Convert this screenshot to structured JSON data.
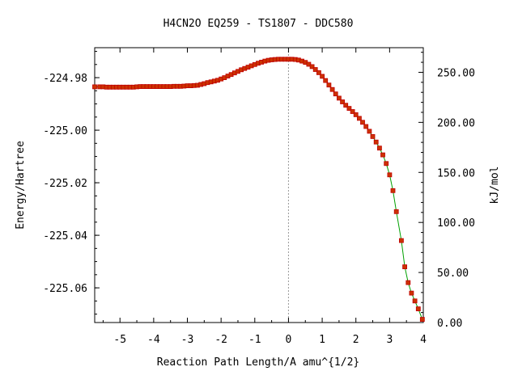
{
  "chart_data": {
    "type": "line",
    "title": "H4CN2O   EQ259 - TS1807 - DDC580",
    "xlabel": "Reaction Path Length/A amu^{1/2}",
    "ylabel": "Energy/Hartree",
    "y2label": "kJ/mol",
    "xlim": [
      -5.75,
      4.0
    ],
    "ylim": [
      -225.0732,
      -224.9686
    ],
    "y2lim": [
      0.0,
      274.6
    ],
    "x_ticks": [
      -5,
      -4,
      -3,
      -2,
      -1,
      0,
      1,
      2,
      3,
      4
    ],
    "x_tick_labels": [
      "-5",
      "-4",
      "-3",
      "-2",
      "-1",
      "0",
      "1",
      "2",
      "3",
      "4"
    ],
    "y_ticks": [
      -224.98,
      -225.0,
      -225.02,
      -225.04,
      -225.06
    ],
    "y_tick_labels": [
      "-224.98",
      "-225.00",
      "-225.02",
      "-225.04",
      "-225.06"
    ],
    "y2_ticks": [
      0,
      50,
      100,
      150,
      200,
      250
    ],
    "y2_tick_labels": [
      "0.00",
      "50.00",
      "100.00",
      "150.00",
      "200.00",
      "250.00"
    ],
    "ts_x": 0.0,
    "grid": false,
    "colors": {
      "line": "#00a000",
      "marker": "#c00000",
      "marker_fill": "#cc3300",
      "ts_line": "#999999"
    },
    "series": [
      {
        "x": [
          -5.75,
          -5.6,
          -5.5,
          -5.4,
          -5.3,
          -5.2,
          -5.1,
          -5.0,
          -4.9,
          -4.8,
          -4.7,
          -4.6,
          -4.5,
          -4.4,
          -4.3,
          -4.2,
          -4.1,
          -4.0,
          -3.9,
          -3.8,
          -3.7,
          -3.6,
          -3.5,
          -3.4,
          -3.3,
          -3.2,
          -3.1,
          -3.0,
          -2.9,
          -2.8,
          -2.7,
          -2.6,
          -2.5,
          -2.4,
          -2.3,
          -2.2,
          -2.1,
          -2.0,
          -1.9,
          -1.8,
          -1.7,
          -1.6,
          -1.5,
          -1.4,
          -1.3,
          -1.2,
          -1.1,
          -1.0,
          -0.9,
          -0.8,
          -0.7,
          -0.6,
          -0.5,
          -0.4,
          -0.3,
          -0.2,
          -0.1,
          0.0,
          0.1,
          0.2,
          0.3,
          0.4,
          0.5,
          0.6,
          0.7,
          0.8,
          0.9,
          1.0,
          1.1,
          1.2,
          1.3,
          1.4,
          1.5,
          1.6,
          1.7,
          1.8,
          1.9,
          2.0,
          2.1,
          2.2,
          2.3,
          2.4,
          2.5,
          2.6,
          2.7,
          2.8,
          2.9,
          3.0,
          3.1,
          3.2,
          3.35,
          3.45,
          3.55,
          3.65,
          3.75,
          3.85,
          3.97
        ],
        "y": [
          -224.9835,
          -224.9835,
          -224.9835,
          -224.9836,
          -224.9836,
          -224.9836,
          -224.9836,
          -224.9836,
          -224.9836,
          -224.9836,
          -224.9836,
          -224.9836,
          -224.9835,
          -224.9834,
          -224.9834,
          -224.9834,
          -224.9834,
          -224.9834,
          -224.9834,
          -224.9834,
          -224.9834,
          -224.9834,
          -224.9834,
          -224.9833,
          -224.9833,
          -224.9833,
          -224.9832,
          -224.9831,
          -224.9831,
          -224.983,
          -224.9829,
          -224.9826,
          -224.9823,
          -224.9819,
          -224.9816,
          -224.9813,
          -224.981,
          -224.9805,
          -224.98,
          -224.9794,
          -224.9788,
          -224.9782,
          -224.9776,
          -224.977,
          -224.9765,
          -224.976,
          -224.9755,
          -224.975,
          -224.9745,
          -224.9741,
          -224.9737,
          -224.9734,
          -224.9732,
          -224.9731,
          -224.973,
          -224.973,
          -224.973,
          -224.973,
          -224.973,
          -224.9731,
          -224.9733,
          -224.9737,
          -224.9742,
          -224.9749,
          -224.9758,
          -224.9769,
          -224.9781,
          -224.9795,
          -224.9811,
          -224.9828,
          -224.9845,
          -224.9862,
          -224.9878,
          -224.9892,
          -224.9905,
          -224.9917,
          -224.9929,
          -224.9941,
          -224.9955,
          -224.997,
          -224.9986,
          -225.0004,
          -225.0024,
          -225.0045,
          -225.0068,
          -225.0094,
          -225.0127,
          -225.017,
          -225.023,
          -225.031,
          -225.042,
          -225.052,
          -225.058,
          -225.062,
          -225.065,
          -225.068,
          -225.072
        ]
      }
    ]
  }
}
